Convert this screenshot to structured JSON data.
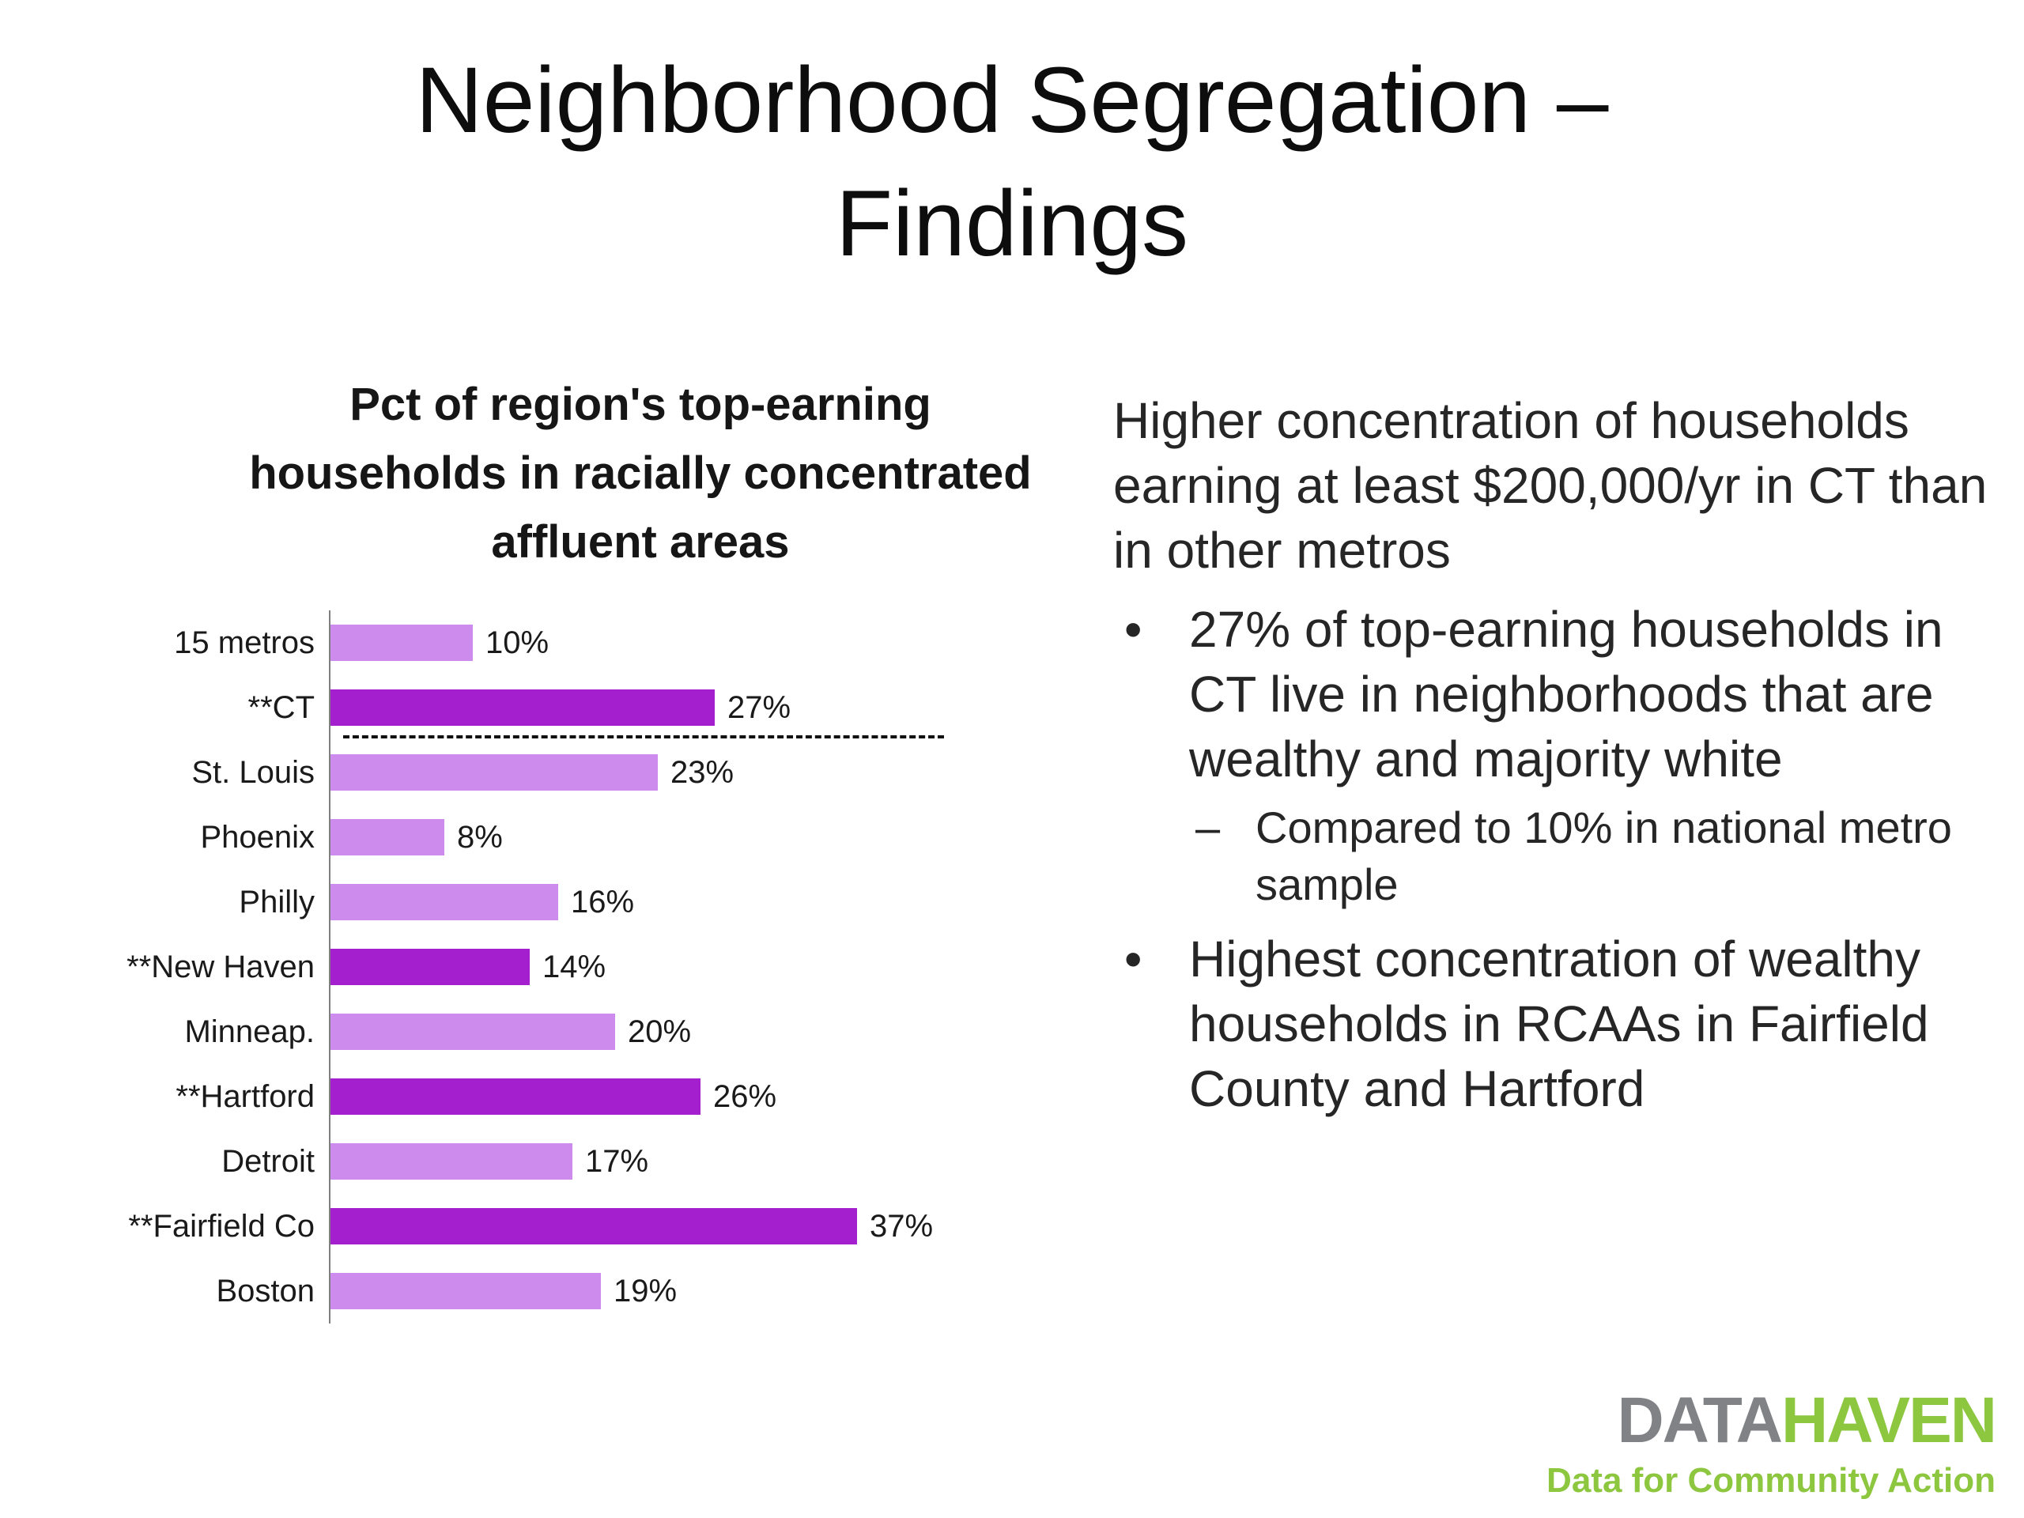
{
  "slide": {
    "title_line1": "Neighborhood Segregation –",
    "title_line2": "Findings"
  },
  "chart_data": {
    "type": "bar",
    "orientation": "horizontal",
    "title": "Pct of region's top-earning households in racially concentrated affluent areas",
    "categories": [
      "15 metros",
      "**CT",
      "St. Louis",
      "Phoenix",
      "Philly",
      "**New Haven",
      "Minneap.",
      "**Hartford",
      "Detroit",
      "**Fairfield Co",
      "Boston"
    ],
    "values": [
      10,
      27,
      23,
      8,
      16,
      14,
      20,
      26,
      17,
      37,
      19
    ],
    "labels": [
      "10%",
      "27%",
      "23%",
      "8%",
      "16%",
      "14%",
      "20%",
      "26%",
      "17%",
      "37%",
      "19%"
    ],
    "highlight_indices": [
      1,
      5,
      7,
      9
    ],
    "colors": {
      "default": "#cd8bee",
      "highlight": "#a41fce"
    },
    "xlabel": "",
    "ylabel": "",
    "xlim": [
      0,
      40
    ],
    "grid": false,
    "legend": false,
    "divider_after_category": "**CT"
  },
  "body": {
    "intro": "Higher concentration of households earning at least $200,000/yr in CT than in other metros",
    "bullet_marker": "•",
    "sub_marker": "–",
    "bullets": [
      {
        "text": "27% of top-earning households in CT live in neighborhoods that are wealthy and majority white",
        "subs": [
          "Compared to 10% in national metro sample"
        ]
      },
      {
        "text": "Highest concentration of wealthy households in RCAAs in Fairfield County and Hartford",
        "subs": []
      }
    ]
  },
  "logo": {
    "part1": "DATA",
    "part2": "HAVEN",
    "tagline": "Data for Community Action",
    "gray": "#808285",
    "green": "#8dc63f"
  }
}
